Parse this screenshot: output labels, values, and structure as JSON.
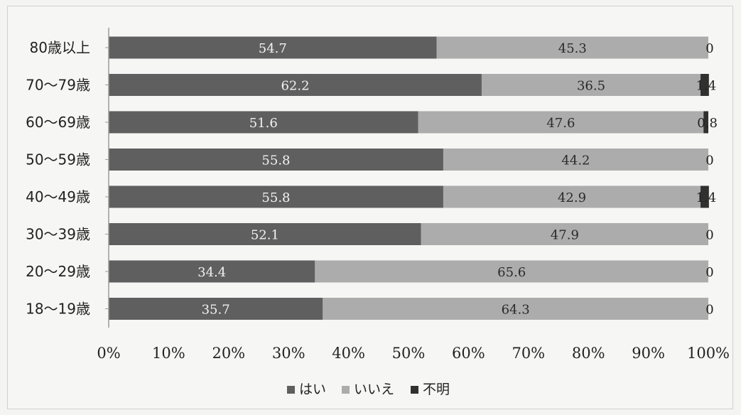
{
  "chart_data": {
    "type": "bar",
    "orientation": "horizontal",
    "stacked": true,
    "percent": true,
    "categories": [
      "80歳以上",
      "70～79歳",
      "60～69歳",
      "50～59歳",
      "40～49歳",
      "30～39歳",
      "20～29歳",
      "18～19歳"
    ],
    "series": [
      {
        "name": "はい",
        "color": "#5f5f5f",
        "values": [
          54.7,
          62.2,
          51.6,
          55.8,
          55.8,
          52.1,
          34.4,
          35.7
        ],
        "value_labels": [
          "54.7",
          "62.2",
          "51.6",
          "55.8",
          "55.8",
          "52.1",
          "34.4",
          "35.7"
        ]
      },
      {
        "name": "いいえ",
        "color": "#acacac",
        "values": [
          45.3,
          36.5,
          47.6,
          44.2,
          42.9,
          47.9,
          65.6,
          64.3
        ],
        "value_labels": [
          "45.3",
          "36.5",
          "47.6",
          "44.2",
          "42.9",
          "47.9",
          "65.6",
          "64.3"
        ]
      },
      {
        "name": "不明",
        "color": "#303030",
        "values": [
          0,
          1.4,
          0.8,
          0,
          1.4,
          0,
          0,
          0
        ],
        "value_labels": [
          "0",
          "1.4",
          "0.8",
          "0",
          "1.4",
          "0",
          "0",
          "0"
        ]
      }
    ],
    "xticks": [
      "0%",
      "10%",
      "20%",
      "30%",
      "40%",
      "50%",
      "60%",
      "70%",
      "80%",
      "90%",
      "100%"
    ],
    "xlim": [
      0,
      100
    ],
    "grid": false,
    "legend_position": "bottom"
  }
}
